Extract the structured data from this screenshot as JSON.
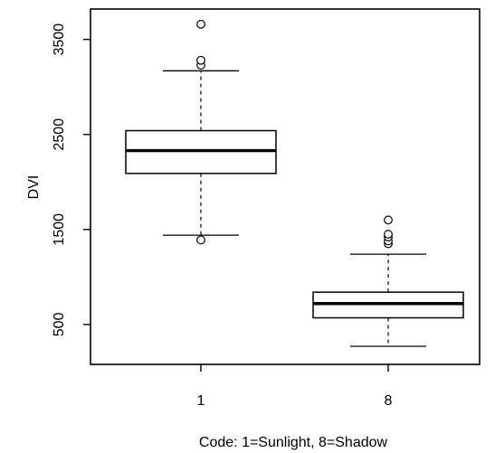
{
  "chart_data": {
    "type": "boxplot",
    "title": "",
    "xlabel": "Code: 1=Sunlight, 8=Shadow",
    "ylabel": "DVI",
    "categories": [
      "1",
      "8"
    ],
    "yticks": [
      "500",
      "1500",
      "2500",
      "3500"
    ],
    "ylim": [
      80,
      3820
    ],
    "grid": false,
    "boxes": [
      {
        "category": "1",
        "whisker_low": 1440,
        "q1": 2090,
        "median": 2330,
        "q3": 2540,
        "whisker_high": 3170,
        "outliers": [
          1390,
          3230,
          3280,
          3660
        ]
      },
      {
        "category": "8",
        "whisker_low": 270,
        "q1": 570,
        "median": 720,
        "q3": 840,
        "whisker_high": 1240,
        "outliers": [
          1350,
          1380,
          1420,
          1450,
          1600
        ]
      }
    ],
    "colors": {
      "stroke": "#000000",
      "fill": "#ffffff"
    }
  }
}
